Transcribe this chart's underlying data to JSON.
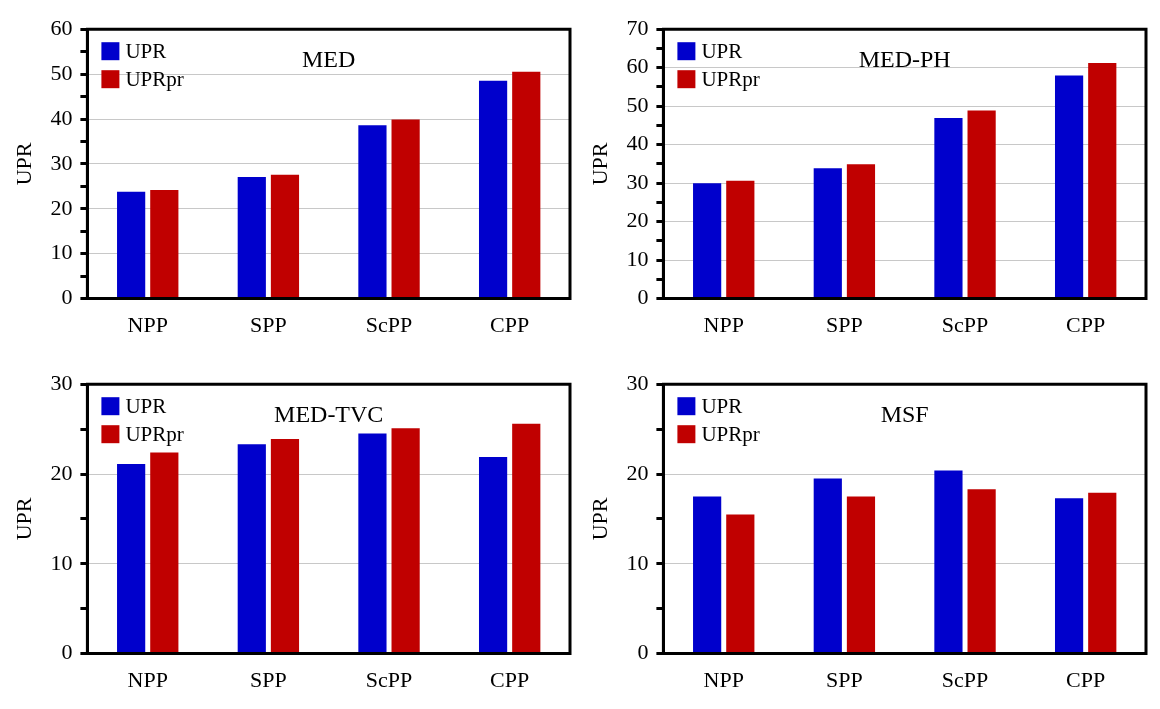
{
  "chart_data": [
    {
      "type": "bar",
      "title": "MED",
      "ylabel": "UPR",
      "categories": [
        "NPP",
        "SPP",
        "ScPP",
        "CPP"
      ],
      "series": [
        {
          "name": "UPR",
          "color": "#0000cc",
          "values": [
            23.8,
            27.1,
            38.6,
            48.5
          ]
        },
        {
          "name": "UPRpr",
          "color": "#c00000",
          "values": [
            24.2,
            27.6,
            39.9,
            50.5
          ]
        }
      ],
      "ylim": [
        0,
        60
      ],
      "yticks": [
        0,
        {
          "value": 5,
          "label": null
        },
        10,
        {
          "value": 15,
          "label": null
        },
        20,
        {
          "value": 25,
          "label": null
        },
        30,
        {
          "value": 35,
          "label": null
        },
        40,
        {
          "value": 45,
          "label": null
        },
        50,
        {
          "value": 55,
          "label": null
        },
        60
      ],
      "grid": "y",
      "legend": "top left"
    },
    {
      "type": "bar",
      "title": "MED-PH",
      "ylabel": "UPR",
      "categories": [
        "NPP",
        "SPP",
        "ScPP",
        "CPP"
      ],
      "series": [
        {
          "name": "UPR",
          "color": "#0000cc",
          "values": [
            30,
            33.9,
            46.9,
            58
          ]
        },
        {
          "name": "UPRpr",
          "color": "#c00000",
          "values": [
            30.6,
            34.9,
            48.9,
            61.2
          ]
        }
      ],
      "ylim": [
        0,
        70
      ],
      "yticks": [
        0,
        {
          "value": 5,
          "label": null
        },
        10,
        {
          "value": 15,
          "label": null
        },
        20,
        {
          "value": 25,
          "label": null
        },
        30,
        {
          "value": 35,
          "label": null
        },
        40,
        {
          "value": 45,
          "label": null
        },
        50,
        {
          "value": 55,
          "label": null
        },
        60,
        {
          "value": 65,
          "label": null
        },
        70
      ],
      "grid": "y",
      "legend": "top left"
    },
    {
      "type": "bar",
      "title": "MED-TVC",
      "ylabel": "UPR",
      "categories": [
        "NPP",
        "SPP",
        "ScPP",
        "CPP"
      ],
      "series": [
        {
          "name": "UPR",
          "color": "#0000cc",
          "values": [
            21.1,
            23.3,
            24.5,
            21.9
          ]
        },
        {
          "name": "UPRpr",
          "color": "#c00000",
          "values": [
            22.4,
            23.9,
            25.1,
            25.6
          ]
        }
      ],
      "ylim": [
        0,
        30
      ],
      "yticks": [
        0,
        {
          "value": 5,
          "label": null
        },
        10,
        {
          "value": 15,
          "label": null
        },
        20,
        {
          "value": 25,
          "label": null
        },
        30
      ],
      "grid": "y",
      "legend": "top left"
    },
    {
      "type": "bar",
      "title": "MSF",
      "ylabel": "UPR",
      "categories": [
        "NPP",
        "SPP",
        "ScPP",
        "CPP"
      ],
      "series": [
        {
          "name": "UPR",
          "color": "#0000cc",
          "values": [
            17.5,
            19.5,
            20.4,
            17.3
          ]
        },
        {
          "name": "UPRpr",
          "color": "#c00000",
          "values": [
            15.5,
            17.5,
            18.3,
            17.9
          ]
        }
      ],
      "ylim": [
        0,
        30
      ],
      "yticks": [
        0,
        {
          "value": 5,
          "label": null
        },
        10,
        {
          "value": 15,
          "label": null
        },
        20,
        {
          "value": 25,
          "label": null
        },
        30
      ],
      "grid": "y",
      "legend": "top left"
    }
  ]
}
